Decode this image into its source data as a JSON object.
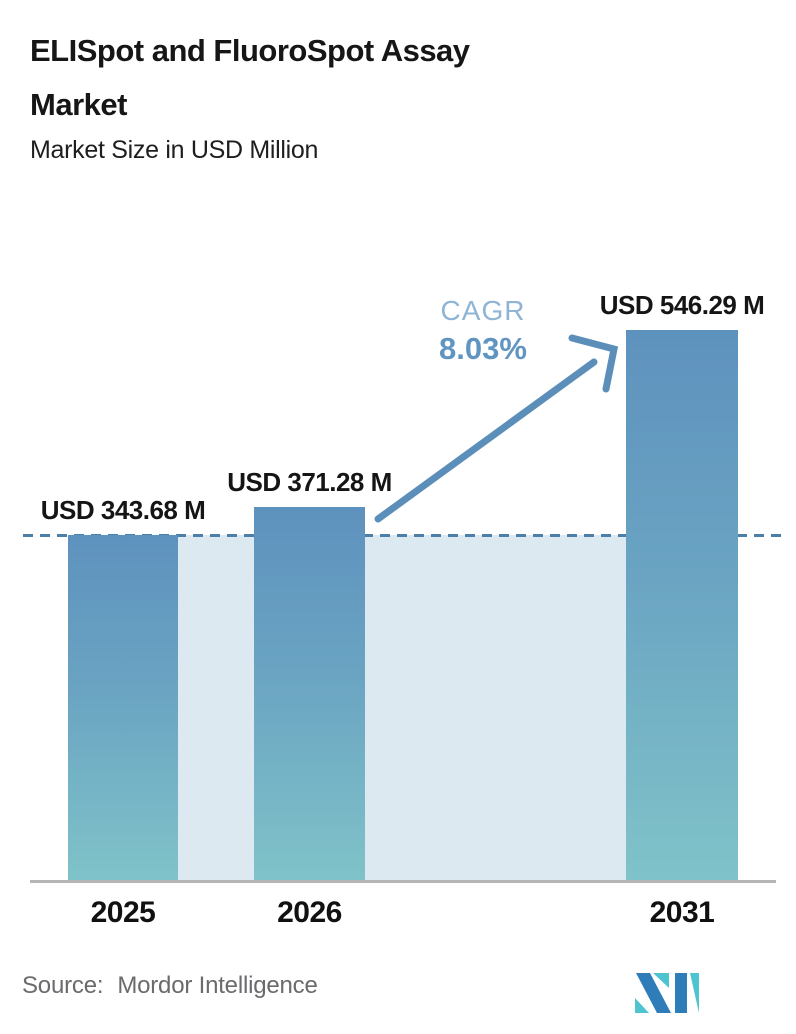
{
  "header": {
    "title_line1": "ELISpot and FluoroSpot Assay",
    "title_line2": "Market",
    "subtitle": "Market Size in USD Million"
  },
  "chart_data": {
    "type": "bar",
    "title": "ELISpot and FluoroSpot Assay Market",
    "subtitle": "Market Size in USD Million",
    "unit": "USD Million",
    "categories": [
      "2025",
      "2026",
      "2031"
    ],
    "values": [
      343.68,
      371.28,
      546.29
    ],
    "bar_labels": [
      "USD 343.68 M",
      "USD 371.28 M",
      "USD 546.29 M"
    ],
    "baseline_value": 343.68,
    "ylim": [
      0,
      560
    ],
    "grid": false,
    "legend": false,
    "annotation": {
      "cagr_label": "CAGR",
      "cagr_value": "8.03%"
    },
    "colors": {
      "bar_top": "#5e92be",
      "bar_bottom": "#80c3c9",
      "area_fill": "#dde9f1",
      "baseline_dash": "#4d80a9",
      "arrow": "#5b8fba",
      "cagr_label": "#8fb4d4",
      "cagr_value": "#6095c1",
      "axis": "#b4b5b6",
      "text": "#161616"
    }
  },
  "footer": {
    "source_label": "Source:",
    "source_value": "Mordor Intelligence",
    "logo_name": "mordor-intelligence-logo",
    "logo_colors": {
      "blue": "#2e7cb8",
      "teal": "#4ec4d1"
    }
  }
}
